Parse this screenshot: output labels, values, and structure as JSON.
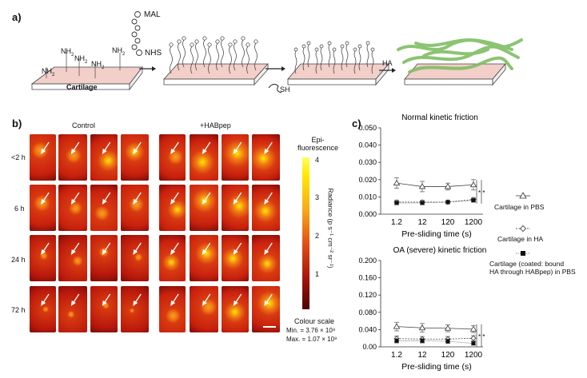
{
  "panel_a": {
    "label": "a)",
    "cartilage_label": "Cartilage",
    "amine_labels": [
      "NH",
      "NH",
      "NH",
      "NH",
      "NH"
    ],
    "linker_mal": "MAL",
    "linker_nhs": "NHS",
    "thiol_label": "SH",
    "ha_label": "HA"
  },
  "panel_b": {
    "label": "b)",
    "col_control": "Control",
    "col_habpep": "+HABpep",
    "rows": [
      "<2 h",
      "6 h",
      "24 h",
      "72 h"
    ],
    "colorbar_title_line1": "Epi-",
    "colorbar_title_line2": "fluorescence",
    "colorbar_ticks": [
      "4",
      "3",
      "2",
      "1"
    ],
    "colorbar_axis": "Radiance (p s⁻¹ cm⁻² sr⁻¹)",
    "colour_scale_title": "Colour scale",
    "scale_min": "Min. = 3.76 × 10⁸",
    "scale_max": "Max. = 1.07 × 10⁹"
  },
  "panel_c": {
    "label": "c)",
    "legend": [
      "Cartilage in PBS",
      "Cartilage in HA",
      "Cartilage (coated: bound",
      "HA through HABpep) in PBS"
    ]
  },
  "chart_data": [
    {
      "type": "line",
      "title": "Normal kinetic friction",
      "xlabel": "Pre-sliding time (s)",
      "ylabel": "",
      "categories": [
        "1.2",
        "12",
        "120",
        "1200"
      ],
      "ylim": [
        0,
        0.05
      ],
      "yticks": [
        "0.000",
        "0.010",
        "0.020",
        "0.030",
        "0.040",
        "0.050"
      ],
      "series": [
        {
          "name": "Cartilage in PBS",
          "values": [
            0.018,
            0.016,
            0.016,
            0.017
          ],
          "err": [
            0.003,
            0.003,
            0.002,
            0.003
          ]
        },
        {
          "name": "Cartilage in HA",
          "values": [
            0.007,
            0.007,
            0.007,
            0.0085
          ],
          "err": [
            0.001,
            0.001,
            0.001,
            0.001
          ]
        },
        {
          "name": "Cartilage (coated: bound HA through HABpep) in PBS",
          "values": [
            0.0065,
            0.0065,
            0.007,
            0.008
          ],
          "err": [
            0.001,
            0.001,
            0.001,
            0.001
          ]
        }
      ],
      "significance": "* *"
    },
    {
      "type": "line",
      "title": "OA (severe) kinetic friction",
      "xlabel": "Pre-sliding time (s)",
      "ylabel": "",
      "categories": [
        "1.2",
        "12",
        "120",
        "1200"
      ],
      "ylim": [
        0,
        0.2
      ],
      "yticks": [
        "0.00",
        "0.040",
        "0.080",
        "0.120",
        "0.160",
        "0.200"
      ],
      "series": [
        {
          "name": "Cartilage in PBS",
          "values": [
            0.047,
            0.044,
            0.043,
            0.041
          ],
          "err": [
            0.01,
            0.01,
            0.008,
            0.008
          ]
        },
        {
          "name": "Cartilage in HA",
          "values": [
            0.019,
            0.018,
            0.018,
            0.02
          ],
          "err": [
            0.006,
            0.006,
            0.006,
            0.006
          ]
        },
        {
          "name": "Cartilage (coated: bound HA through HABpep) in PBS",
          "values": [
            0.014,
            0.014,
            0.013,
            0.008
          ],
          "err": [
            0.005,
            0.005,
            0.005,
            0.004
          ]
        }
      ],
      "significance": "* *"
    }
  ],
  "colors": {
    "hot_dark": "#5a0a05",
    "hot_red": "#c8200e",
    "hot_orange": "#f06a10",
    "hot_yellow": "#ffe800",
    "cartilage_pink": "#f2cfc9",
    "ha_green": "#7fbe63"
  }
}
